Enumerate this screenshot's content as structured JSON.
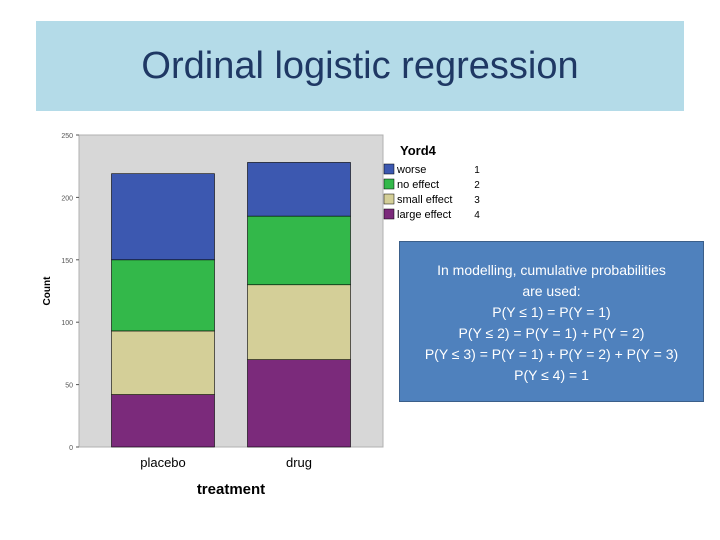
{
  "slide": {
    "title": "Ordinal logistic regression"
  },
  "info_box": {
    "lines": [
      "In modelling, cumulative probabilities",
      "are used:",
      "P(Y ≤ 1) = P(Y = 1)",
      "P(Y ≤ 2) = P(Y = 1) + P(Y = 2)",
      "P(Y ≤ 3)  = P(Y = 1) + P(Y = 2) + P(Y = 3)",
      "P(Y ≤ 4) = 1"
    ]
  },
  "chart_data": {
    "type": "bar",
    "stacked": true,
    "categories": [
      "placebo",
      "drug"
    ],
    "series": [
      {
        "name": "large effect",
        "code": "4",
        "color": "#7b2a7b",
        "values": [
          42,
          70
        ]
      },
      {
        "name": "small effect",
        "code": "3",
        "color": "#d4cf98",
        "values": [
          51,
          60
        ]
      },
      {
        "name": "no effect",
        "code": "2",
        "color": "#33b84a",
        "values": [
          57,
          55
        ]
      },
      {
        "name": "worse",
        "code": "1",
        "color": "#3c58b0",
        "values": [
          69,
          43
        ]
      }
    ],
    "xlabel": "treatment",
    "ylabel": "Count",
    "legend_title": "Yord4",
    "legend_placement": "right",
    "ylim": [
      0,
      250
    ],
    "yticks": [
      "0",
      "50",
      "100",
      "150",
      "200",
      "250"
    ],
    "plot_background": "#d7d7d7"
  }
}
